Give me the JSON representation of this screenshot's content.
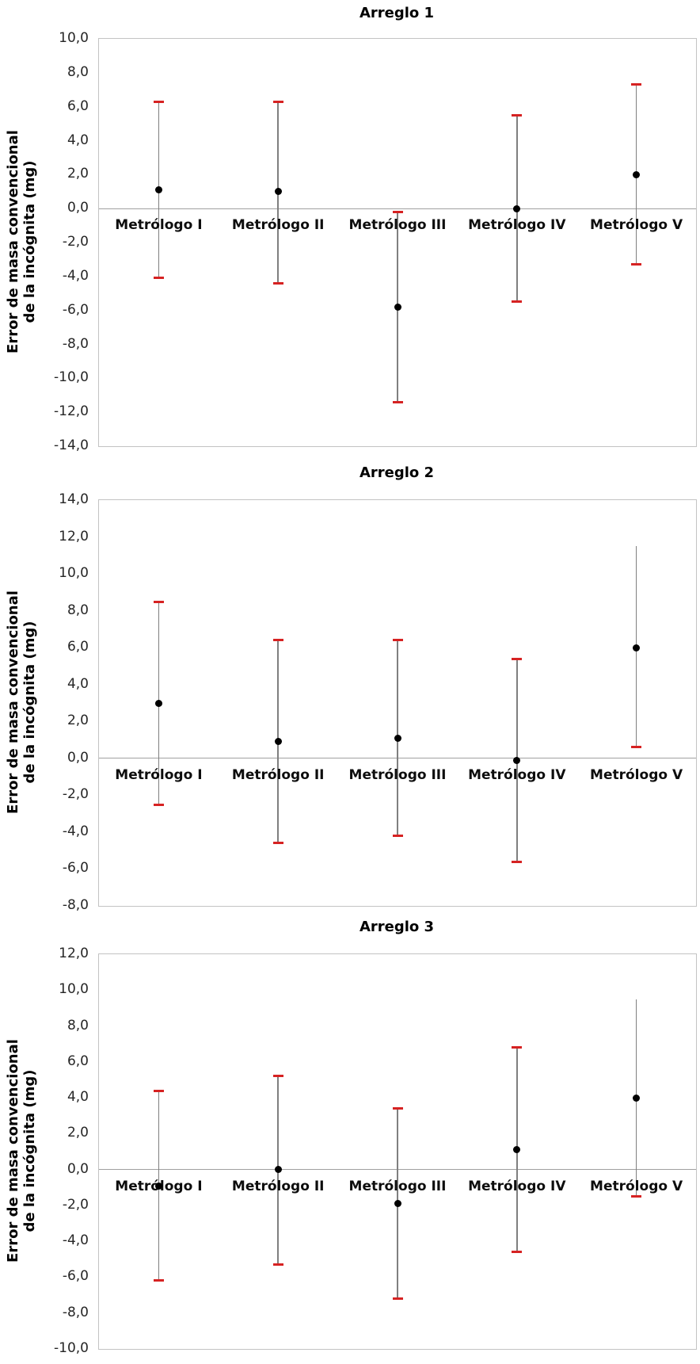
{
  "y_axis_label": {
    "line1": "Error de masa convencional",
    "line2": "de la incógnita (mg)"
  },
  "number": {
    "decimal_separator": ",",
    "decimals": 1
  },
  "colors": {
    "error_cap": "#d62222",
    "error_line": "#7f7f7f",
    "point": "#000000",
    "plot_border": "#c3c3c3",
    "zero_line": "#a0a0a0",
    "text": "#262626"
  },
  "chart_data": [
    {
      "type": "scatter",
      "title": "Arreglo 1",
      "categories": [
        "Metrólogo I",
        "Metrólogo II",
        "Metrólogo III",
        "Metrólogo IV",
        "Metrólogo V"
      ],
      "points": [
        1.1,
        1.0,
        -5.8,
        0.0,
        2.0
      ],
      "upper": [
        6.3,
        6.3,
        -0.2,
        5.5,
        7.3
      ],
      "lower": [
        -4.1,
        -4.4,
        -11.4,
        -5.5,
        -3.3
      ],
      "upper_cap_shown": [
        true,
        true,
        true,
        true,
        true
      ],
      "lower_cap_shown": [
        true,
        true,
        true,
        true,
        true
      ],
      "ylabel": "Error de masa convencional de la incógnita (mg)",
      "xlabel": "",
      "ylim": [
        -14,
        10
      ],
      "ytick_step": 2,
      "ytick_format": "decimal-comma",
      "grid": "zero-line-only",
      "legend": "none"
    },
    {
      "type": "scatter",
      "title": "Arreglo 2",
      "categories": [
        "Metrólogo I",
        "Metrólogo II",
        "Metrólogo III",
        "Metrólogo IV",
        "Metrólogo V"
      ],
      "points": [
        3.0,
        0.9,
        1.1,
        -0.1,
        6.0
      ],
      "upper": [
        8.5,
        6.4,
        6.4,
        5.4,
        11.5
      ],
      "lower": [
        -2.5,
        -4.6,
        -4.2,
        -5.6,
        0.6
      ],
      "upper_cap_shown": [
        true,
        true,
        true,
        true,
        false
      ],
      "lower_cap_shown": [
        true,
        true,
        true,
        true,
        true
      ],
      "ylabel": "Error de masa convencional de la incógnita (mg)",
      "xlabel": "",
      "ylim": [
        -8,
        14
      ],
      "ytick_step": 2,
      "ytick_format": "decimal-comma",
      "grid": "zero-line-only",
      "legend": "none"
    },
    {
      "type": "scatter",
      "title": "Arreglo 3",
      "categories": [
        "Metrólogo I",
        "Metrólogo II",
        "Metrólogo III",
        "Metrólogo IV",
        "Metrólogo V"
      ],
      "points": [
        -0.9,
        0.0,
        -1.9,
        1.1,
        4.0
      ],
      "upper": [
        4.4,
        5.2,
        3.4,
        6.8,
        9.5
      ],
      "lower": [
        -6.2,
        -5.3,
        -7.2,
        -4.6,
        -1.5
      ],
      "upper_cap_shown": [
        true,
        true,
        true,
        true,
        false
      ],
      "lower_cap_shown": [
        true,
        true,
        true,
        true,
        true
      ],
      "ylabel": "Error de masa convencional de la incógnita (mg)",
      "xlabel": "",
      "ylim": [
        -10,
        12
      ],
      "ytick_step": 2,
      "ytick_format": "decimal-comma",
      "grid": "zero-line-only",
      "legend": "none"
    }
  ]
}
